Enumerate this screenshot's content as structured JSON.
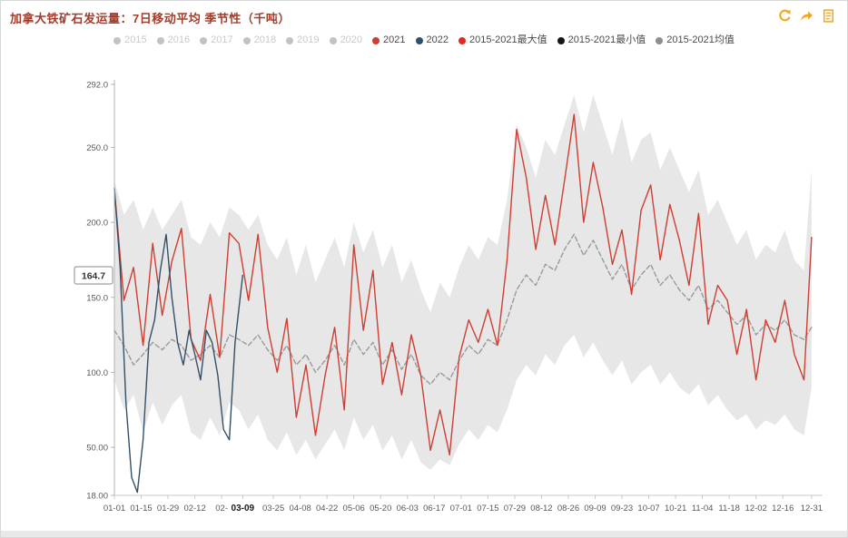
{
  "header": {
    "title": "加拿大铁矿石发运量：7日移动平均 季节性（千吨）",
    "icon_color": "#f5a623",
    "icons": [
      "refresh-icon",
      "share-forward-icon",
      "document-icon"
    ]
  },
  "legend": {
    "items": [
      {
        "label": "2015",
        "color": "#c2c2c2",
        "muted": true
      },
      {
        "label": "2016",
        "color": "#c2c2c2",
        "muted": true
      },
      {
        "label": "2017",
        "color": "#c2c2c2",
        "muted": true
      },
      {
        "label": "2018",
        "color": "#c2c2c2",
        "muted": true
      },
      {
        "label": "2019",
        "color": "#c2c2c2",
        "muted": true
      },
      {
        "label": "2020",
        "color": "#c2c2c2",
        "muted": true
      },
      {
        "label": "2021",
        "color": "#cf3e32",
        "muted": false
      },
      {
        "label": "2022",
        "color": "#33506a",
        "muted": false
      },
      {
        "label": "2015-2021最大值",
        "color": "#e02a1d",
        "muted": false
      },
      {
        "label": "2015-2021最小值",
        "color": "#141414",
        "muted": false
      },
      {
        "label": "2015-2021均值",
        "color": "#8f8f8f",
        "muted": false
      }
    ]
  },
  "chart_data": {
    "type": "line",
    "title": "加拿大铁矿石发运量：7日移动平均 季节性（千吨）",
    "ylabel": "千吨",
    "ylim": [
      18,
      292
    ],
    "x_range_days": [
      0,
      365
    ],
    "grid": false,
    "legend_position": "top",
    "y_ticks": [
      {
        "value": 292,
        "label": "292.0"
      },
      {
        "value": 250,
        "label": "250.0"
      },
      {
        "value": 200,
        "label": "200.0"
      },
      {
        "value": 150,
        "label": "150.0"
      },
      {
        "value": 100,
        "label": "100.0"
      },
      {
        "value": 50,
        "label": "50.00"
      },
      {
        "value": 18,
        "label": "18.00"
      }
    ],
    "x_ticks": [
      {
        "day": 0,
        "label": "01-01"
      },
      {
        "day": 14,
        "label": "01-15"
      },
      {
        "day": 28,
        "label": "01-29"
      },
      {
        "day": 42,
        "label": "02-12"
      },
      {
        "day": 56,
        "label": "02-"
      },
      {
        "day": 67,
        "label": "03-09",
        "bold": true
      },
      {
        "day": 83,
        "label": "03-25"
      },
      {
        "day": 97,
        "label": "04-08"
      },
      {
        "day": 111,
        "label": "04-22"
      },
      {
        "day": 125,
        "label": "05-06"
      },
      {
        "day": 139,
        "label": "05-20"
      },
      {
        "day": 153,
        "label": "06-03"
      },
      {
        "day": 167,
        "label": "06-17"
      },
      {
        "day": 181,
        "label": "07-01"
      },
      {
        "day": 195,
        "label": "07-15"
      },
      {
        "day": 209,
        "label": "07-29"
      },
      {
        "day": 223,
        "label": "08-12"
      },
      {
        "day": 237,
        "label": "08-26"
      },
      {
        "day": 251,
        "label": "09-09"
      },
      {
        "day": 265,
        "label": "09-23"
      },
      {
        "day": 279,
        "label": "10-07"
      },
      {
        "day": 293,
        "label": "10-21"
      },
      {
        "day": 307,
        "label": "11-04"
      },
      {
        "day": 321,
        "label": "11-18"
      },
      {
        "day": 335,
        "label": "12-02"
      },
      {
        "day": 349,
        "label": "12-16"
      },
      {
        "day": 364,
        "label": "12-31"
      }
    ],
    "current_value_label": {
      "value": 164.7,
      "label": "164.7",
      "series": "2022"
    },
    "band": {
      "name": "2015-2021 min-max range",
      "fill": "#e7e7e7",
      "x_days": [
        0,
        5,
        10,
        15,
        20,
        25,
        30,
        35,
        40,
        45,
        50,
        55,
        60,
        65,
        70,
        75,
        80,
        85,
        90,
        95,
        100,
        105,
        110,
        115,
        120,
        125,
        130,
        135,
        140,
        145,
        150,
        155,
        160,
        165,
        170,
        175,
        180,
        185,
        190,
        195,
        200,
        205,
        210,
        215,
        220,
        225,
        230,
        235,
        240,
        245,
        250,
        255,
        260,
        265,
        270,
        275,
        280,
        285,
        290,
        295,
        300,
        305,
        310,
        315,
        320,
        325,
        330,
        335,
        340,
        345,
        350,
        355,
        360,
        364
      ],
      "upper": [
        228,
        205,
        215,
        195,
        210,
        195,
        205,
        215,
        190,
        185,
        200,
        190,
        210,
        205,
        195,
        205,
        185,
        175,
        190,
        165,
        185,
        160,
        175,
        190,
        170,
        200,
        180,
        195,
        170,
        185,
        160,
        175,
        155,
        140,
        160,
        150,
        170,
        185,
        175,
        190,
        185,
        215,
        265,
        250,
        230,
        255,
        245,
        265,
        285,
        260,
        285,
        265,
        245,
        270,
        240,
        255,
        260,
        235,
        250,
        235,
        220,
        235,
        205,
        215,
        200,
        185,
        195,
        175,
        185,
        180,
        195,
        175,
        168,
        235
      ],
      "lower": [
        95,
        75,
        85,
        60,
        80,
        65,
        78,
        85,
        60,
        55,
        70,
        58,
        80,
        75,
        62,
        72,
        55,
        48,
        60,
        45,
        55,
        42,
        52,
        62,
        48,
        70,
        55,
        65,
        48,
        58,
        42,
        55,
        40,
        35,
        42,
        38,
        52,
        62,
        55,
        65,
        60,
        75,
        95,
        105,
        98,
        112,
        105,
        118,
        125,
        110,
        120,
        108,
        98,
        108,
        92,
        100,
        105,
        92,
        100,
        90,
        85,
        92,
        78,
        85,
        75,
        68,
        72,
        62,
        68,
        65,
        72,
        62,
        58,
        90
      ]
    },
    "series": [
      {
        "name": "2015-2021均值",
        "color": "#9a9a9a",
        "dash": true,
        "x_days": [
          0,
          5,
          10,
          15,
          20,
          25,
          30,
          35,
          40,
          45,
          50,
          55,
          60,
          65,
          70,
          75,
          80,
          85,
          90,
          95,
          100,
          105,
          110,
          115,
          120,
          125,
          130,
          135,
          140,
          145,
          150,
          155,
          160,
          165,
          170,
          175,
          180,
          185,
          190,
          195,
          200,
          205,
          210,
          215,
          220,
          225,
          230,
          235,
          240,
          245,
          250,
          255,
          260,
          265,
          270,
          275,
          280,
          285,
          290,
          295,
          300,
          305,
          310,
          315,
          320,
          325,
          330,
          335,
          340,
          345,
          350,
          355,
          360,
          364
        ],
        "values": [
          128,
          118,
          105,
          112,
          120,
          115,
          122,
          118,
          108,
          112,
          118,
          110,
          125,
          122,
          118,
          125,
          115,
          108,
          118,
          105,
          112,
          100,
          108,
          118,
          105,
          122,
          112,
          120,
          105,
          115,
          102,
          112,
          98,
          92,
          100,
          95,
          108,
          118,
          112,
          122,
          118,
          135,
          155,
          165,
          158,
          172,
          168,
          182,
          192,
          178,
          188,
          175,
          162,
          172,
          155,
          165,
          172,
          158,
          165,
          155,
          148,
          158,
          142,
          148,
          140,
          132,
          138,
          125,
          132,
          128,
          135,
          125,
          122,
          130
        ]
      },
      {
        "name": "2021",
        "color": "#cf3e32",
        "dash": false,
        "x_days": [
          0,
          5,
          10,
          15,
          20,
          25,
          30,
          35,
          40,
          45,
          50,
          55,
          60,
          65,
          70,
          75,
          80,
          85,
          90,
          95,
          100,
          105,
          110,
          115,
          120,
          125,
          130,
          135,
          140,
          145,
          150,
          155,
          160,
          165,
          170,
          175,
          180,
          185,
          190,
          195,
          200,
          205,
          210,
          215,
          220,
          225,
          230,
          235,
          240,
          245,
          250,
          255,
          260,
          265,
          270,
          275,
          280,
          285,
          290,
          295,
          300,
          305,
          310,
          315,
          320,
          325,
          330,
          335,
          340,
          345,
          350,
          355,
          360,
          364
        ],
        "values": [
          222,
          148,
          170,
          118,
          186,
          138,
          174,
          196,
          122,
          108,
          152,
          110,
          193,
          186,
          148,
          192,
          130,
          100,
          136,
          70,
          105,
          58,
          98,
          130,
          75,
          185,
          128,
          168,
          92,
          120,
          85,
          125,
          98,
          48,
          75,
          45,
          110,
          135,
          120,
          142,
          118,
          175,
          262,
          230,
          182,
          218,
          185,
          228,
          272,
          200,
          240,
          210,
          172,
          195,
          152,
          208,
          225,
          175,
          212,
          188,
          158,
          206,
          132,
          158,
          148,
          112,
          142,
          95,
          135,
          120,
          148,
          112,
          95,
          190
        ]
      },
      {
        "name": "2022",
        "color": "#33506a",
        "dash": false,
        "x_days": [
          0,
          3,
          6,
          9,
          12,
          15,
          18,
          21,
          24,
          27,
          30,
          33,
          36,
          39,
          42,
          45,
          48,
          51,
          54,
          57,
          60,
          63,
          67
        ],
        "values": [
          223,
          170,
          80,
          30,
          20,
          55,
          120,
          135,
          168,
          192,
          150,
          120,
          105,
          128,
          112,
          95,
          128,
          120,
          98,
          62,
          55,
          120,
          164.7
        ]
      }
    ]
  }
}
